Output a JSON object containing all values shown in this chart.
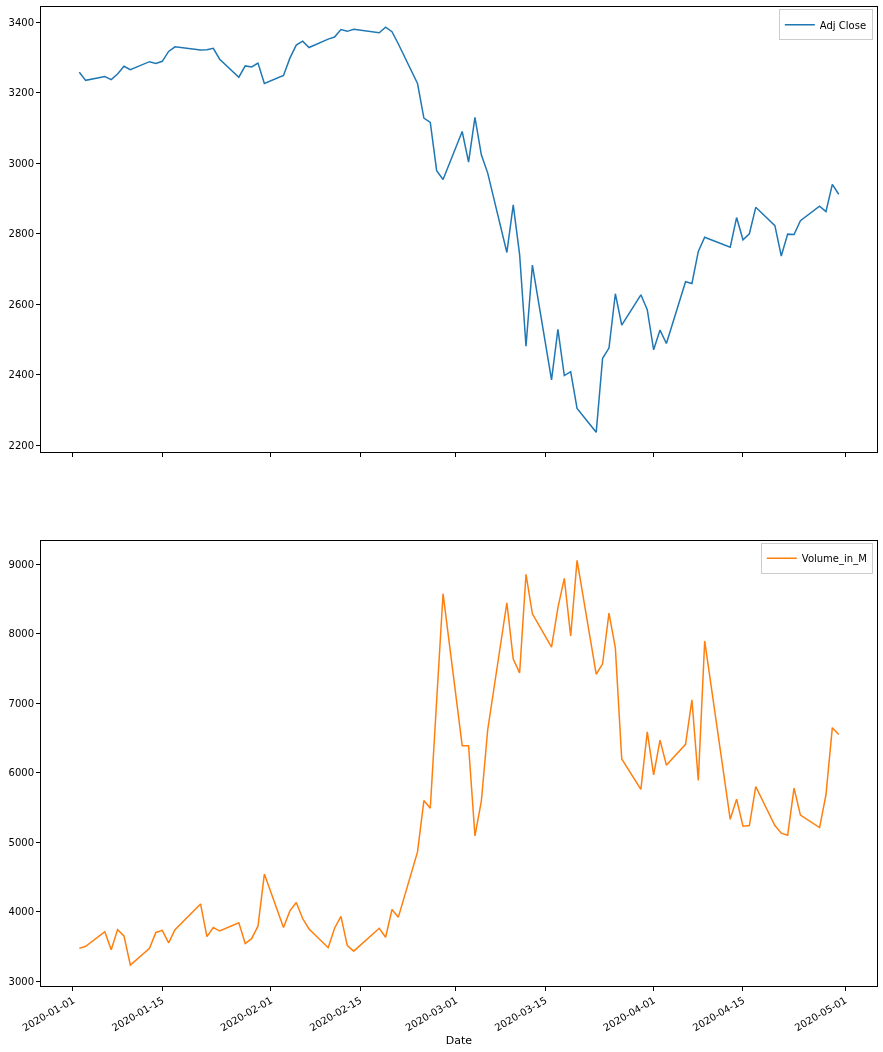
{
  "chart_data": [
    {
      "type": "line",
      "legend": "top right",
      "tick_labels": "y",
      "x": [
        "2020-01-02",
        "2020-01-03",
        "2020-01-06",
        "2020-01-07",
        "2020-01-08",
        "2020-01-09",
        "2020-01-10",
        "2020-01-13",
        "2020-01-14",
        "2020-01-15",
        "2020-01-16",
        "2020-01-17",
        "2020-01-21",
        "2020-01-22",
        "2020-01-23",
        "2020-01-24",
        "2020-01-27",
        "2020-01-28",
        "2020-01-29",
        "2020-01-30",
        "2020-01-31",
        "2020-02-03",
        "2020-02-04",
        "2020-02-05",
        "2020-02-06",
        "2020-02-07",
        "2020-02-10",
        "2020-02-11",
        "2020-02-12",
        "2020-02-13",
        "2020-02-14",
        "2020-02-18",
        "2020-02-19",
        "2020-02-20",
        "2020-02-21",
        "2020-02-24",
        "2020-02-25",
        "2020-02-26",
        "2020-02-27",
        "2020-02-28",
        "2020-03-02",
        "2020-03-03",
        "2020-03-04",
        "2020-03-05",
        "2020-03-06",
        "2020-03-09",
        "2020-03-10",
        "2020-03-11",
        "2020-03-12",
        "2020-03-13",
        "2020-03-16",
        "2020-03-17",
        "2020-03-18",
        "2020-03-19",
        "2020-03-20",
        "2020-03-23",
        "2020-03-24",
        "2020-03-25",
        "2020-03-26",
        "2020-03-27",
        "2020-03-30",
        "2020-03-31",
        "2020-04-01",
        "2020-04-02",
        "2020-04-03",
        "2020-04-06",
        "2020-04-07",
        "2020-04-08",
        "2020-04-09",
        "2020-04-13",
        "2020-04-14",
        "2020-04-15",
        "2020-04-16",
        "2020-04-17",
        "2020-04-20",
        "2020-04-21",
        "2020-04-22",
        "2020-04-23",
        "2020-04-24",
        "2020-04-27",
        "2020-04-28",
        "2020-04-29",
        "2020-04-30"
      ],
      "series": [
        {
          "name": "Adj Close",
          "color": "#1f77b4",
          "values": [
            3258,
            3235,
            3246,
            3237,
            3253,
            3275,
            3265,
            3288,
            3283,
            3289,
            3317,
            3330,
            3321,
            3322,
            3326,
            3295,
            3244,
            3276,
            3273,
            3284,
            3226,
            3249,
            3298,
            3335,
            3346,
            3328,
            3352,
            3358,
            3379,
            3374,
            3380,
            3370,
            3386,
            3373,
            3338,
            3226,
            3128,
            3116,
            2979,
            2954,
            3090,
            3003,
            3130,
            3024,
            2972,
            2747,
            2882,
            2741,
            2481,
            2711,
            2386,
            2529,
            2398,
            2409,
            2305,
            2237,
            2447,
            2476,
            2630,
            2541,
            2627,
            2585,
            2471,
            2527,
            2489,
            2664,
            2659,
            2750,
            2790,
            2762,
            2846,
            2783,
            2800,
            2875,
            2823,
            2737,
            2799,
            2798,
            2837,
            2878,
            2863,
            2940,
            2912
          ]
        }
      ],
      "xlim": [
        "2019-12-27",
        "2020-05-06"
      ],
      "xticks": [
        {
          "value": "2020-01-01",
          "label": null
        },
        {
          "value": "2020-01-15",
          "label": null
        },
        {
          "value": "2020-02-01",
          "label": null
        },
        {
          "value": "2020-02-15",
          "label": null
        },
        {
          "value": "2020-03-01",
          "label": null
        },
        {
          "value": "2020-03-15",
          "label": null
        },
        {
          "value": "2020-04-01",
          "label": null
        },
        {
          "value": "2020-04-15",
          "label": null
        },
        {
          "value": "2020-05-01",
          "label": null
        }
      ],
      "ylim": [
        2180,
        3443
      ],
      "yticks": [
        2200,
        2400,
        2600,
        2800,
        3000,
        3200,
        3400
      ]
    },
    {
      "type": "line",
      "legend": "top right",
      "xlabel": "Date",
      "x": [
        "2020-01-02",
        "2020-01-03",
        "2020-01-06",
        "2020-01-07",
        "2020-01-08",
        "2020-01-09",
        "2020-01-10",
        "2020-01-13",
        "2020-01-14",
        "2020-01-15",
        "2020-01-16",
        "2020-01-17",
        "2020-01-21",
        "2020-01-22",
        "2020-01-23",
        "2020-01-24",
        "2020-01-27",
        "2020-01-28",
        "2020-01-29",
        "2020-01-30",
        "2020-01-31",
        "2020-02-03",
        "2020-02-04",
        "2020-02-05",
        "2020-02-06",
        "2020-02-07",
        "2020-02-10",
        "2020-02-11",
        "2020-02-12",
        "2020-02-13",
        "2020-02-14",
        "2020-02-18",
        "2020-02-19",
        "2020-02-20",
        "2020-02-21",
        "2020-02-24",
        "2020-02-25",
        "2020-02-26",
        "2020-02-27",
        "2020-02-28",
        "2020-03-02",
        "2020-03-03",
        "2020-03-04",
        "2020-03-05",
        "2020-03-06",
        "2020-03-09",
        "2020-03-10",
        "2020-03-11",
        "2020-03-12",
        "2020-03-13",
        "2020-03-16",
        "2020-03-17",
        "2020-03-18",
        "2020-03-19",
        "2020-03-20",
        "2020-03-23",
        "2020-03-24",
        "2020-03-25",
        "2020-03-26",
        "2020-03-27",
        "2020-03-30",
        "2020-03-31",
        "2020-04-01",
        "2020-04-02",
        "2020-04-03",
        "2020-04-06",
        "2020-04-07",
        "2020-04-08",
        "2020-04-09",
        "2020-04-13",
        "2020-04-14",
        "2020-04-15",
        "2020-04-16",
        "2020-04-17",
        "2020-04-20",
        "2020-04-21",
        "2020-04-22",
        "2020-04-23",
        "2020-04-24",
        "2020-04-27",
        "2020-04-28",
        "2020-04-29",
        "2020-04-30"
      ],
      "series": [
        {
          "name": "Volume_in_M",
          "color": "#ff7f0e",
          "values": [
            3470,
            3500,
            3710,
            3450,
            3740,
            3650,
            3230,
            3470,
            3700,
            3730,
            3550,
            3740,
            4110,
            3640,
            3770,
            3720,
            3840,
            3540,
            3610,
            3790,
            4540,
            3770,
            4010,
            4130,
            3900,
            3750,
            3480,
            3760,
            3930,
            3510,
            3430,
            3760,
            3630,
            4030,
            3920,
            4860,
            5600,
            5490,
            7040,
            8580,
            6390,
            6390,
            5090,
            5590,
            6620,
            8450,
            7640,
            7440,
            8860,
            8290,
            7810,
            8380,
            8800,
            7970,
            9060,
            7420,
            7570,
            8300,
            7800,
            6200,
            5760,
            6590,
            5970,
            6470,
            6110,
            6410,
            7050,
            5890,
            7900,
            5330,
            5620,
            5230,
            5240,
            5800,
            5240,
            5130,
            5100,
            5780,
            5390,
            5210,
            5680,
            6650,
            6550
          ]
        }
      ],
      "xlim": [
        "2019-12-27",
        "2020-05-06"
      ],
      "xticks": [
        {
          "value": "2020-01-01",
          "label": "2020-01-01"
        },
        {
          "value": "2020-01-15",
          "label": "2020-01-15"
        },
        {
          "value": "2020-02-01",
          "label": "2020-02-01"
        },
        {
          "value": "2020-02-15",
          "label": "2020-02-15"
        },
        {
          "value": "2020-03-01",
          "label": "2020-03-01"
        },
        {
          "value": "2020-03-15",
          "label": "2020-03-15"
        },
        {
          "value": "2020-04-01",
          "label": "2020-04-01"
        },
        {
          "value": "2020-04-15",
          "label": "2020-04-15"
        },
        {
          "value": "2020-05-01",
          "label": "2020-05-01"
        }
      ],
      "ylim": [
        2928,
        9346
      ],
      "yticks": [
        3000,
        4000,
        5000,
        6000,
        7000,
        8000,
        9000
      ]
    }
  ]
}
